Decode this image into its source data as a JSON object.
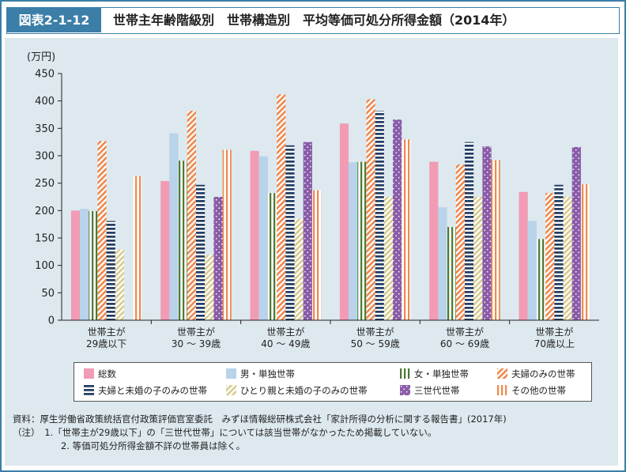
{
  "header": {
    "figure_label": "図表2-1-12",
    "title": "世帯主年齢階級別　世帯構造別　平均等価可処分所得金額（2014年）"
  },
  "chart_data": {
    "type": "bar",
    "title": "世帯主年齢階級別　世帯構造別　平均等価可処分所得金額（2014年）",
    "ylabel": "(万円)",
    "ylim": [
      0,
      450
    ],
    "yticks": [
      0,
      50,
      100,
      150,
      200,
      250,
      300,
      350,
      400,
      450
    ],
    "categories": [
      [
        "世帯主が",
        "29歳以下"
      ],
      [
        "世帯主が",
        "30 ～ 39歳"
      ],
      [
        "世帯主が",
        "40 ～ 49歳"
      ],
      [
        "世帯主が",
        "50 ～ 59歳"
      ],
      [
        "世帯主が",
        "60 ～ 69歳"
      ],
      [
        "世帯主が",
        "70歳以上"
      ]
    ],
    "series": [
      {
        "name": "総数",
        "color": "#f29bb5",
        "pattern": "solid",
        "values": [
          200,
          254,
          309,
          359,
          289,
          234
        ]
      },
      {
        "name": "男・単独世帯",
        "color": "#b8d3ea",
        "pattern": "solid",
        "values": [
          203,
          341,
          299,
          288,
          206,
          181
        ]
      },
      {
        "name": "女・単独世帯",
        "color": "#4d7a33",
        "pattern": "vstripe",
        "values": [
          199,
          291,
          232,
          289,
          170,
          148
        ]
      },
      {
        "name": "夫婦のみの世帯",
        "color": "#ef8a4f",
        "pattern": "diag",
        "values": [
          327,
          382,
          412,
          403,
          284,
          232
        ]
      },
      {
        "name": "夫婦と未婚の子のみの世帯",
        "color": "#243e66",
        "pattern": "hstripe",
        "values": [
          181,
          247,
          319,
          382,
          325,
          247
        ]
      },
      {
        "name": "ひとり親と未婚の子のみの世帯",
        "color": "#d9cc8f",
        "pattern": "diag",
        "values": [
          129,
          119,
          185,
          225,
          225,
          225
        ]
      },
      {
        "name": "三世代世帯",
        "color": "#8a5ca8",
        "pattern": "dots",
        "values": [
          null,
          225,
          325,
          366,
          317,
          316
        ]
      },
      {
        "name": "その他の世帯",
        "color": "#ef8a4f",
        "pattern": "vstripe",
        "values": [
          263,
          311,
          237,
          330,
          292,
          248
        ]
      }
    ],
    "legend_position": "bottom",
    "grid": false
  },
  "notes": {
    "source": "資料：厚生労働省政策統括官付政策評価官室委託　みずほ情報総研株式会社「家計所得の分析に関する報告書」(2017年)",
    "note1": "（注）　1.「世帯主が29歳以下」の「三世代世帯」については該当世帯がなかったため掲載していない。",
    "note2": "2. 等価可処分所得金額不詳の世帯員は除く。"
  }
}
